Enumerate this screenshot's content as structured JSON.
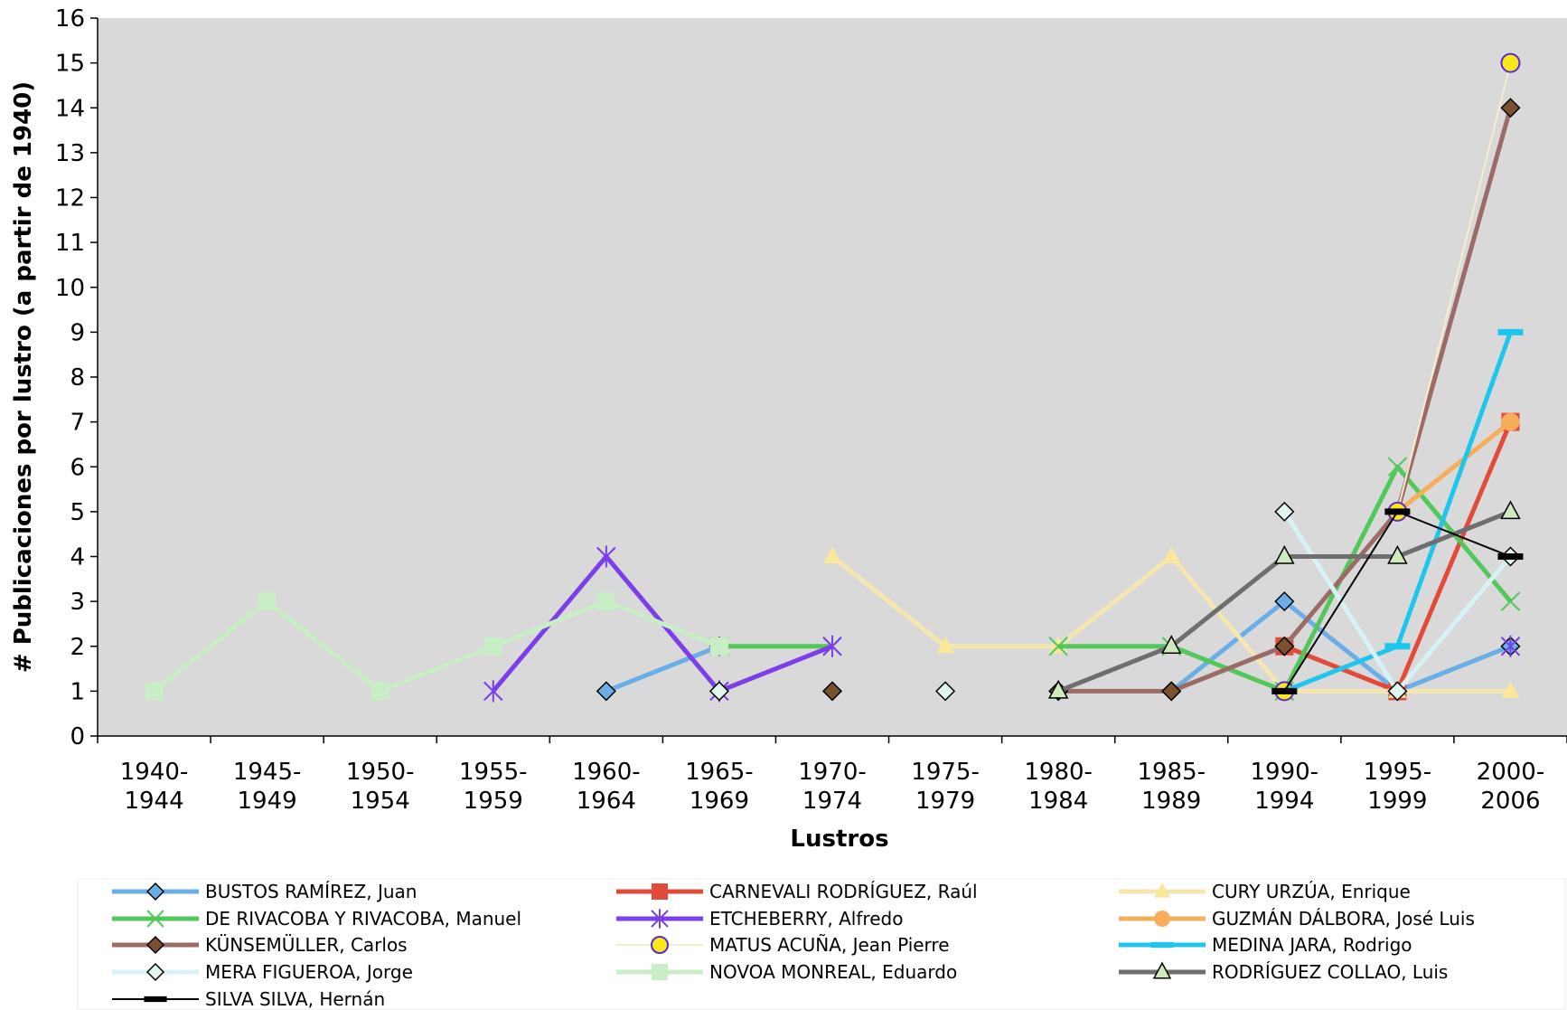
{
  "chart_data": {
    "type": "line",
    "title": "",
    "xlabel": "Lustros",
    "ylabel": "# Publicaciones por lustro (a partir de 1940)",
    "ylim": [
      0,
      16
    ],
    "yticks": [
      "0",
      "1",
      "2",
      "3",
      "4",
      "5",
      "6",
      "7",
      "8",
      "9",
      "10",
      "11",
      "12",
      "13",
      "14",
      "15",
      "16"
    ],
    "categories": [
      [
        "1940-",
        "1944"
      ],
      [
        "1945-",
        "1949"
      ],
      [
        "1950-",
        "1954"
      ],
      [
        "1955-",
        "1959"
      ],
      [
        "1960-",
        "1964"
      ],
      [
        "1965-",
        "1969"
      ],
      [
        "1970-",
        "1974"
      ],
      [
        "1975-",
        "1979"
      ],
      [
        "1980-",
        "1984"
      ],
      [
        "1985-",
        "1989"
      ],
      [
        "1990-",
        "1994"
      ],
      [
        "1995-",
        "1999"
      ],
      [
        "2000-",
        "2006"
      ]
    ],
    "grid": false,
    "plot_background": "#d9d9d9",
    "legend_position": "bottom",
    "series": [
      {
        "name": "BUSTOS RAMÍREZ, Juan",
        "color": "#6aaee8",
        "marker": "diamond",
        "marker_fill": "#6aaee8",
        "values": [
          null,
          null,
          null,
          null,
          1,
          2,
          null,
          null,
          null,
          1,
          3,
          1,
          2
        ]
      },
      {
        "name": "CARNEVALI RODRÍGUEZ, Raúl",
        "color": "#e24a3a",
        "marker": "square",
        "marker_fill": "#e24a3a",
        "values": [
          null,
          null,
          null,
          null,
          null,
          null,
          null,
          null,
          null,
          null,
          2,
          1,
          7
        ]
      },
      {
        "name": "CURY URZÚA, Enrique",
        "color": "#f5e6b0",
        "marker": "triangle",
        "marker_fill": "#fbe79a",
        "values": [
          null,
          null,
          null,
          null,
          null,
          null,
          4,
          2,
          2,
          4,
          1,
          1,
          1
        ]
      },
      {
        "name": "DE RIVACOBA Y RIVACOBA, Manuel",
        "color": "#52c85a",
        "marker": "x",
        "marker_fill": "#52c85a",
        "values": [
          null,
          null,
          null,
          null,
          null,
          2,
          2,
          null,
          2,
          2,
          1,
          6,
          3
        ]
      },
      {
        "name": "ETCHEBERRY, Alfredo",
        "color": "#7a3fe6",
        "marker": "asterisk",
        "marker_fill": "#7a3fe6",
        "values": [
          null,
          null,
          null,
          1,
          4,
          1,
          2,
          null,
          null,
          null,
          null,
          null,
          2
        ]
      },
      {
        "name": "GUZMÁN DÁLBORA, José Luis",
        "color": "#f6ae5a",
        "marker": "circle",
        "marker_fill": "#f6ae5a",
        "values": [
          null,
          null,
          null,
          null,
          null,
          null,
          null,
          null,
          null,
          null,
          null,
          5,
          7
        ]
      },
      {
        "name": "KÜNSEMÜLLER, Carlos",
        "color": "#9b6b66",
        "marker": "diamond",
        "marker_fill": "#7a5230",
        "values": [
          null,
          null,
          null,
          null,
          null,
          null,
          1,
          null,
          1,
          1,
          2,
          5,
          14
        ]
      },
      {
        "name": "MATUS ACUÑA, Jean Pierre",
        "color": "#f3efc8",
        "marker": "circle",
        "marker_fill": "#f8e81a",
        "values": [
          null,
          null,
          null,
          null,
          null,
          null,
          null,
          null,
          null,
          null,
          1,
          5,
          15
        ]
      },
      {
        "name": "MEDINA JARA, Rodrigo",
        "color": "#1ec6ee",
        "marker": "dash",
        "marker_fill": "#1ec6ee",
        "values": [
          null,
          null,
          null,
          null,
          null,
          null,
          null,
          null,
          null,
          null,
          1,
          2,
          9
        ]
      },
      {
        "name": "MERA FIGUEROA, Jorge",
        "color": "#d6f2f6",
        "marker": "diamond",
        "marker_fill": "#dff6ef",
        "values": [
          null,
          null,
          null,
          null,
          null,
          1,
          null,
          1,
          null,
          null,
          5,
          1,
          4
        ]
      },
      {
        "name": "NOVOA MONREAL, Eduardo",
        "color": "#c9eec6",
        "marker": "square",
        "marker_fill": "#c9eec6",
        "values": [
          1,
          3,
          1,
          2,
          3,
          2,
          null,
          null,
          null,
          null,
          null,
          null,
          null
        ]
      },
      {
        "name": "RODRÍGUEZ COLLAO, Luis",
        "color": "#6e6e6e",
        "marker": "triangle",
        "marker_fill": "#cfeabd",
        "values": [
          null,
          null,
          null,
          null,
          null,
          null,
          null,
          null,
          1,
          2,
          4,
          4,
          5
        ]
      },
      {
        "name": "SILVA SILVA, Hernán",
        "color": "#000000",
        "marker": "dash",
        "marker_fill": "#000000",
        "values": [
          null,
          null,
          null,
          null,
          null,
          null,
          null,
          null,
          null,
          null,
          1,
          5,
          4
        ]
      }
    ]
  }
}
